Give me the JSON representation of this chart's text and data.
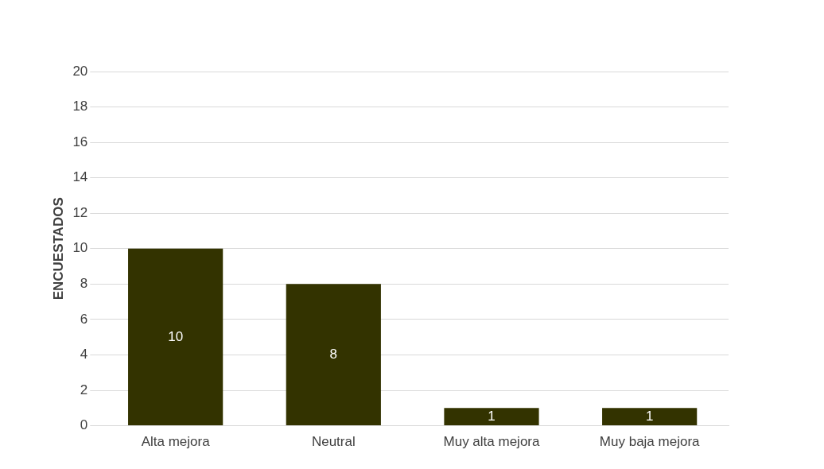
{
  "chart_data": {
    "type": "bar",
    "ylabel": "ENCUESTADOS",
    "categories": [
      "Alta mejora",
      "Neutral",
      "Muy alta mejora",
      "Muy baja mejora"
    ],
    "values": [
      10,
      8,
      1,
      1
    ],
    "color": "#333300",
    "ylim": [
      0,
      20
    ],
    "yticks": [
      0,
      2,
      4,
      6,
      8,
      10,
      12,
      14,
      16,
      18,
      20
    ],
    "grid": "y",
    "data_labels": true
  }
}
